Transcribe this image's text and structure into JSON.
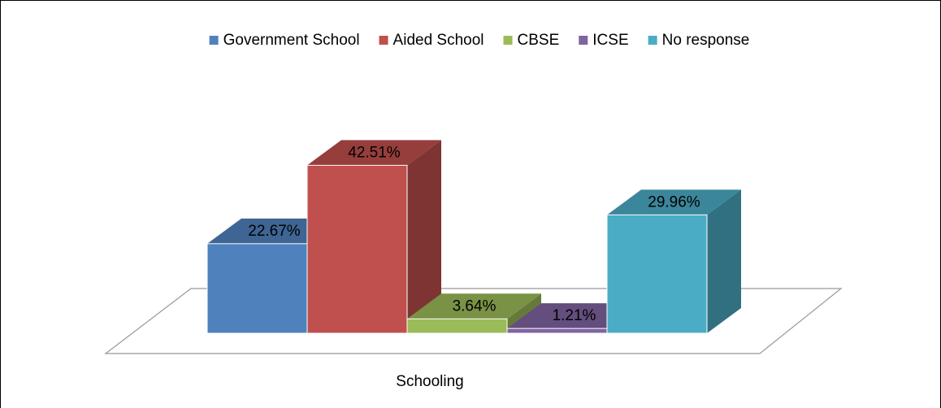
{
  "chart_data": {
    "type": "bar3d",
    "categories": [
      "Schooling"
    ],
    "series": [
      {
        "name": "Government School",
        "color": "#4f81bd",
        "values": [
          22.67
        ],
        "value_labels": [
          "22.67%"
        ]
      },
      {
        "name": "Aided School",
        "color": "#c0504d",
        "values": [
          42.51
        ],
        "value_labels": [
          "42.51%"
        ]
      },
      {
        "name": "CBSE",
        "color": "#9bbb59",
        "values": [
          3.64
        ],
        "value_labels": [
          "3.64%"
        ]
      },
      {
        "name": "ICSE",
        "color": "#8064a2",
        "values": [
          1.21
        ],
        "value_labels": [
          "1.21%"
        ]
      },
      {
        "name": "No response",
        "color": "#4bacc6",
        "values": [
          29.96
        ],
        "value_labels": [
          "29.96%"
        ]
      }
    ]
  }
}
